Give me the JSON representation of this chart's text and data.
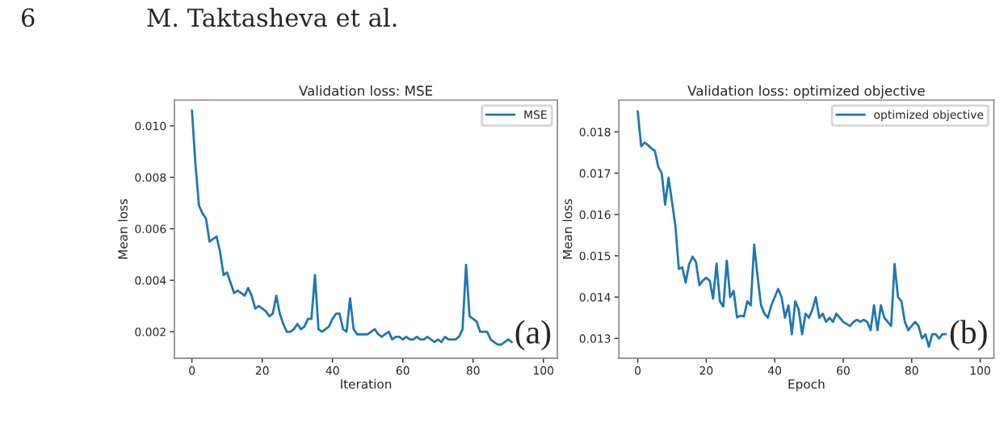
{
  "chart_data": [
    {
      "type": "line",
      "title": "Validation loss: MSE",
      "xlabel": "Iteration",
      "ylabel": "Mean loss",
      "annotations": [
        "6",
        "M. Taktasheva et al.",
        "(a)"
      ],
      "series": [
        {
          "name": "MSE",
          "color": "#1f77b4",
          "x": [
            0,
            1,
            2,
            3,
            4,
            5,
            6,
            7,
            8,
            9,
            10,
            11,
            12,
            13,
            14,
            15,
            16,
            17,
            18,
            19,
            20,
            21,
            22,
            23,
            24,
            25,
            26,
            27,
            28,
            29,
            30,
            31,
            32,
            33,
            34,
            35,
            36,
            37,
            38,
            39,
            40,
            41,
            42,
            43,
            44,
            45,
            46,
            47,
            48,
            49,
            50,
            51,
            52,
            53,
            54,
            55,
            56,
            57,
            58,
            59,
            60,
            61,
            62,
            63,
            64,
            65,
            66,
            67,
            68,
            69,
            70,
            71,
            72,
            73,
            74,
            75,
            76,
            77,
            78,
            79,
            80,
            81,
            82,
            83,
            84,
            85,
            86,
            87,
            88,
            89,
            90,
            91
          ],
          "values": [
            0.0106,
            0.0085,
            0.0069,
            0.0066,
            0.0064,
            0.0055,
            0.0056,
            0.0057,
            0.0051,
            0.0042,
            0.0043,
            0.0039,
            0.0035,
            0.0036,
            0.0035,
            0.0034,
            0.0037,
            0.0034,
            0.0029,
            0.003,
            0.0029,
            0.0028,
            0.0026,
            0.0027,
            0.0034,
            0.0027,
            0.0023,
            0.002,
            0.002,
            0.0021,
            0.0023,
            0.0021,
            0.0022,
            0.0025,
            0.0025,
            0.0042,
            0.0021,
            0.002,
            0.0021,
            0.0022,
            0.0025,
            0.0027,
            0.0027,
            0.0021,
            0.002,
            0.0033,
            0.0021,
            0.0019,
            0.0019,
            0.0019,
            0.0019,
            0.002,
            0.0021,
            0.0019,
            0.0018,
            0.0019,
            0.002,
            0.0017,
            0.0018,
            0.0018,
            0.0017,
            0.0018,
            0.0017,
            0.0017,
            0.0018,
            0.0017,
            0.0017,
            0.0018,
            0.0017,
            0.0016,
            0.0017,
            0.0016,
            0.0018,
            0.0017,
            0.0017,
            0.0017,
            0.0018,
            0.0021,
            0.0046,
            0.0026,
            0.0025,
            0.0024,
            0.002,
            0.002,
            0.002,
            0.0017,
            0.0016,
            0.0015,
            0.0015,
            0.0016,
            0.0017,
            0.0016
          ]
        }
      ],
      "xlim": [
        -5,
        104
      ],
      "xticks": [
        0,
        20,
        40,
        60,
        80,
        100
      ],
      "ylim": [
        0.00097,
        0.011
      ],
      "yticks": [
        0.002,
        0.004,
        0.006,
        0.008,
        {
          "value": 0.01,
          "label": "0.010"
        }
      ],
      "legend": "top right",
      "grid": false
    },
    {
      "type": "line",
      "title": "Validation loss: optimized objective",
      "xlabel": "Epoch",
      "ylabel": "Mean loss",
      "annotations": [
        "(b)"
      ],
      "series": [
        {
          "name": "optimized objective",
          "color": "#1f77b4",
          "x": [
            0,
            1,
            2,
            3,
            4,
            5,
            6,
            7,
            8,
            9,
            10,
            11,
            12,
            13,
            14,
            15,
            16,
            17,
            18,
            19,
            20,
            21,
            22,
            23,
            24,
            25,
            26,
            27,
            28,
            29,
            30,
            31,
            32,
            33,
            34,
            35,
            36,
            37,
            38,
            39,
            40,
            41,
            42,
            43,
            44,
            45,
            46,
            47,
            48,
            49,
            50,
            51,
            52,
            53,
            54,
            55,
            56,
            57,
            58,
            59,
            60,
            61,
            62,
            63,
            64,
            65,
            66,
            67,
            68,
            69,
            70,
            71,
            72,
            73,
            74,
            75,
            76,
            77,
            78,
            79,
            80,
            81,
            82,
            83,
            84,
            85,
            86,
            87,
            88,
            89,
            90
          ],
          "values": [
            0.0185,
            0.01765,
            0.01774,
            0.01768,
            0.0176,
            0.01754,
            0.01715,
            0.017,
            0.01624,
            0.01689,
            0.01631,
            0.01572,
            0.01468,
            0.01472,
            0.01435,
            0.0148,
            0.01498,
            0.01485,
            0.01429,
            0.0144,
            0.01447,
            0.0144,
            0.01396,
            0.01481,
            0.0139,
            0.01377,
            0.01488,
            0.014,
            0.01415,
            0.01351,
            0.01355,
            0.01353,
            0.0139,
            0.0138,
            0.01527,
            0.0145,
            0.0138,
            0.0136,
            0.0135,
            0.0138,
            0.014,
            0.0142,
            0.014,
            0.0135,
            0.0138,
            0.0131,
            0.0139,
            0.0137,
            0.0131,
            0.0136,
            0.0135,
            0.0137,
            0.014,
            0.0135,
            0.0136,
            0.0134,
            0.0135,
            0.0134,
            0.0136,
            0.0135,
            0.0134,
            0.01335,
            0.0133,
            0.0134,
            0.01345,
            0.0134,
            0.01345,
            0.0134,
            0.0132,
            0.0138,
            0.0132,
            0.0138,
            0.0135,
            0.0134,
            0.0133,
            0.0148,
            0.014,
            0.0139,
            0.0134,
            0.0132,
            0.0133,
            0.0134,
            0.0133,
            0.013,
            0.0131,
            0.0128,
            0.0131,
            0.0131,
            0.013,
            0.0131,
            0.0131
          ]
        }
      ],
      "xlim": [
        -5.5,
        104
      ],
      "xticks": [
        0,
        20,
        40,
        60,
        80,
        100
      ],
      "ylim": [
        0.01252,
        0.01877
      ],
      "yticks": [
        0.013,
        0.014,
        0.015,
        0.016,
        0.017,
        0.018
      ],
      "legend": "top right",
      "grid": false
    }
  ]
}
